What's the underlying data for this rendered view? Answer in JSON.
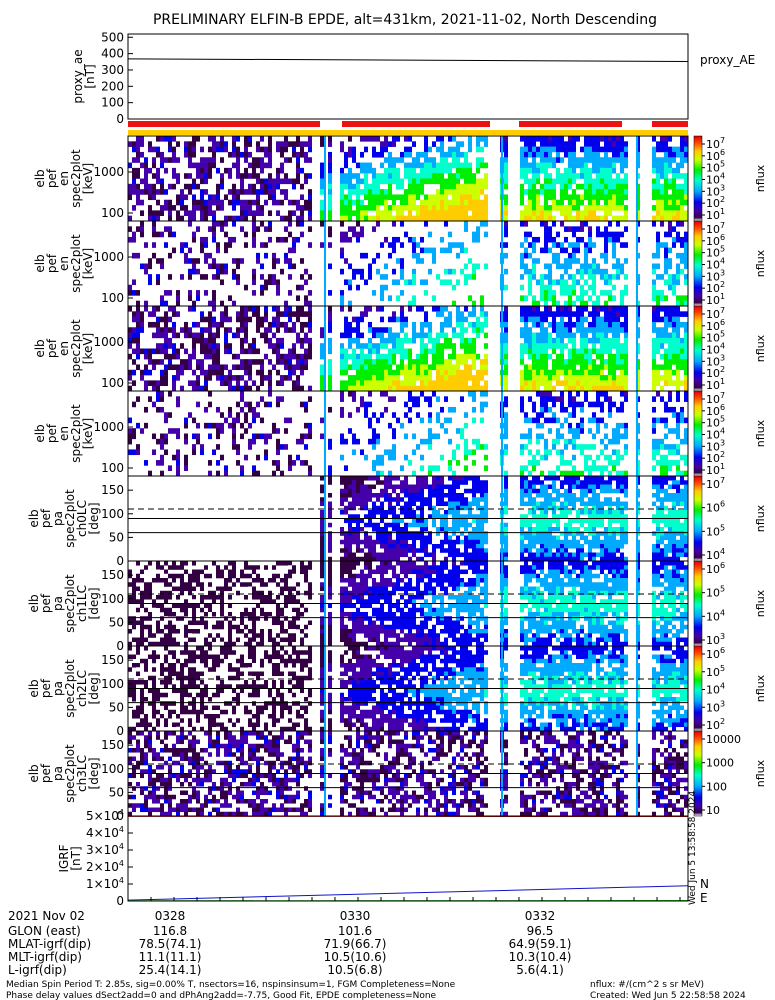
{
  "title": "PRELIMINARY ELFIN-B EPDE, alt=431km, 2021-11-02, North Descending",
  "colors": {
    "red": "#ee1111",
    "yellow": "#ffcc00",
    "blue": "#1111cc",
    "green": "#22bb22",
    "dark": "#2a0a3a"
  },
  "chart_data": [
    {
      "type": "line",
      "panel": "proxy_ae",
      "ylabel": "proxy_ae\n[nT]",
      "yticks": [
        "0",
        "100",
        "200",
        "300",
        "400",
        "500"
      ],
      "ylim": [
        0,
        520
      ],
      "series": [
        {
          "name": "proxy_AE",
          "x": [
            0,
            1
          ],
          "y": [
            368,
            352
          ]
        }
      ]
    },
    {
      "type": "heatmap",
      "panel": "spec2plot en (1)",
      "ylabel": [
        "elb",
        "pef",
        "en",
        "spec2plot",
        "[keV]"
      ],
      "yticks": [
        "100",
        "1000"
      ],
      "colorbar": {
        "label": "nflux",
        "ticks": [
          "10",
          "10",
          "10",
          "10",
          "10",
          "10",
          "10"
        ],
        "exps": [
          "7",
          "6",
          "5",
          "4",
          "3",
          "2",
          "1"
        ]
      }
    },
    {
      "type": "heatmap",
      "panel": "spec2plot en (2)",
      "ylabel": [
        "elb",
        "pef",
        "en",
        "spec2plot",
        "[keV]"
      ],
      "yticks": [
        "100",
        "1000"
      ],
      "colorbar": {
        "label": "nflux",
        "ticks": [
          "10",
          "10",
          "10",
          "10",
          "10",
          "10",
          "10"
        ],
        "exps": [
          "7",
          "6",
          "5",
          "4",
          "3",
          "2",
          "1"
        ]
      }
    },
    {
      "type": "heatmap",
      "panel": "spec2plot en (3)",
      "ylabel": [
        "elb",
        "pef",
        "en",
        "spec2plot",
        "[keV]"
      ],
      "yticks": [
        "100",
        "1000"
      ],
      "colorbar": {
        "label": "nflux",
        "ticks": [
          "10",
          "10",
          "10",
          "10",
          "10",
          "10",
          "10"
        ],
        "exps": [
          "7",
          "6",
          "5",
          "4",
          "3",
          "2",
          "1"
        ]
      }
    },
    {
      "type": "heatmap",
      "panel": "spec2plot en (4)",
      "ylabel": [
        "elb",
        "pef",
        "en",
        "spec2plot",
        "[keV]"
      ],
      "yticks": [
        "100",
        "1000"
      ],
      "colorbar": {
        "label": "nflux",
        "ticks": [
          "10",
          "10",
          "10",
          "10",
          "10",
          "10",
          "10"
        ],
        "exps": [
          "7",
          "6",
          "5",
          "4",
          "3",
          "2",
          "1"
        ]
      }
    },
    {
      "type": "heatmap",
      "panel": "spec2plot ch0LC",
      "ylabel": [
        "elb",
        "pef",
        "pa",
        "spec2plot",
        "ch0LC",
        "[deg]"
      ],
      "yticks": [
        "0",
        "50",
        "100",
        "150"
      ],
      "colorbar": {
        "label": "nflux",
        "ticks": [
          "10",
          "10",
          "10",
          "10"
        ],
        "exps": [
          "7",
          "6",
          "5",
          "4"
        ]
      }
    },
    {
      "type": "heatmap",
      "panel": "spec2plot ch1LC",
      "ylabel": [
        "elb",
        "pef",
        "pa",
        "spec2plot",
        "ch1LC",
        "[deg]"
      ],
      "yticks": [
        "0",
        "50",
        "100",
        "150"
      ],
      "colorbar": {
        "label": "nflux",
        "ticks": [
          "10",
          "10",
          "10",
          "10"
        ],
        "exps": [
          "6",
          "5",
          "4",
          "3"
        ]
      }
    },
    {
      "type": "heatmap",
      "panel": "spec2plot ch2LC",
      "ylabel": [
        "elb",
        "pef",
        "pa",
        "spec2plot",
        "ch2LC",
        "[deg]"
      ],
      "yticks": [
        "0",
        "50",
        "100",
        "150"
      ],
      "colorbar": {
        "label": "nflux",
        "ticks": [
          "10",
          "10",
          "10",
          "10",
          "10"
        ],
        "exps": [
          "6",
          "5",
          "4",
          "3",
          "2"
        ]
      }
    },
    {
      "type": "heatmap",
      "panel": "spec2plot ch3LC",
      "ylabel": [
        "elb",
        "pef",
        "pa",
        "spec2plot",
        "ch3LC",
        "[deg]"
      ],
      "yticks": [
        "0",
        "50",
        "100",
        "150"
      ],
      "colorbar": {
        "label": "nflux",
        "ticks": [
          "10000",
          "1000",
          "100",
          "10"
        ]
      }
    },
    {
      "type": "line",
      "panel": "IGRF",
      "ylabel": "IGRF\n[nT]",
      "yticks": [
        "0",
        "1×10",
        "2×10",
        "3×10",
        "4×10",
        "5×10"
      ],
      "ytick_exp": "4",
      "ylim": [
        0,
        50000
      ],
      "series": [
        {
          "name": "N",
          "x": [
            0,
            1
          ],
          "y": [
            500,
            9000
          ]
        },
        {
          "name": "E",
          "x": [
            0,
            1
          ],
          "y": [
            150,
            300
          ]
        },
        {
          "name": "",
          "x": [
            0,
            1
          ],
          "y": [
            49800,
            49700
          ]
        }
      ]
    }
  ],
  "xaxis": {
    "date": "2021 Nov 02",
    "rows": [
      {
        "label": "GLON (east)",
        "values": [
          "116.8",
          "101.6",
          "96.5"
        ]
      },
      {
        "label": "MLAT-igrf(dip)",
        "values": [
          "78.5(74.1)",
          "71.9(66.7)",
          "64.9(59.1)"
        ]
      },
      {
        "label": "MLT-igrf(dip)",
        "values": [
          "11.1(11.1)",
          "10.5(10.6)",
          "10.3(10.4)"
        ]
      },
      {
        "label": "L-igrf(dip)",
        "values": [
          "25.4(14.1)",
          "10.5(6.8)",
          "5.6(4.1)"
        ]
      }
    ],
    "ticks": [
      "0328",
      "0330",
      "0332"
    ]
  },
  "footer": {
    "line1": "Median Spin Period T: 2.85s, sig=0.00% T, nsectors=16, nspinsinsum=1, FGM Completeness=None",
    "line2": "Phase delay values dSect2add=0 and dPhAng2add=-7.75, Good Fit, EPDE completeness=None",
    "units": "nflux: #/(cm^2 s sr MeV)",
    "created": "Created: Wed Jun  5 22:58:58 2024"
  },
  "side_stamp": "Wed Jun  5 13:58:58 2024"
}
